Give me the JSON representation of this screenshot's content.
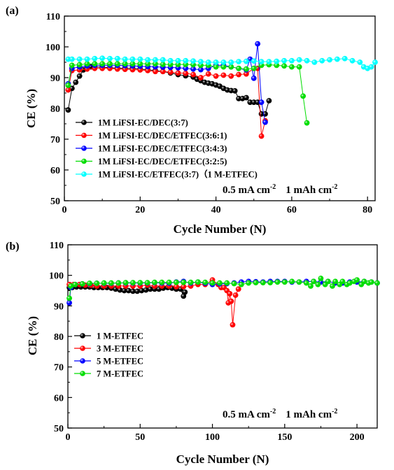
{
  "chart_data": [
    {
      "type": "scatter",
      "panel_label": "(a)",
      "xlabel": "Cycle Number (N)",
      "ylabel": "CE (%)",
      "xlim": [
        0,
        82
      ],
      "ylim": [
        50,
        110
      ],
      "xticks": [
        0,
        20,
        40,
        60,
        80
      ],
      "yticks": [
        50,
        60,
        70,
        80,
        90,
        100,
        110
      ],
      "legend_position": "bottom-left",
      "conditions": {
        "current": "0.5 mA cm",
        "current_exp": "-2",
        "capacity": "1 mAh cm",
        "capacity_exp": "-2"
      },
      "series": [
        {
          "name": "1M LiFSI-EC/DEC(3:7)",
          "color": "#000000",
          "x": [
            1,
            2,
            3,
            4,
            5,
            6,
            7,
            8,
            10,
            12,
            14,
            16,
            18,
            20,
            22,
            24,
            26,
            28,
            30,
            32,
            34,
            35,
            36,
            37,
            38,
            39,
            40,
            41,
            42,
            43,
            44,
            45,
            46,
            47,
            48,
            49,
            50,
            51,
            52,
            53,
            54
          ],
          "y": [
            79.5,
            86.5,
            88.5,
            90.5,
            92.5,
            93.2,
            93.5,
            93.5,
            93.4,
            93.2,
            93.1,
            93.0,
            93.0,
            92.8,
            92.6,
            92.3,
            92.0,
            91.5,
            91.0,
            90.6,
            90.2,
            89.5,
            89.0,
            88.5,
            88.2,
            88.0,
            87.6,
            87.2,
            86.5,
            86.0,
            85.8,
            85.7,
            83.2,
            83.2,
            83.5,
            82.0,
            82.0,
            82.0,
            78.2,
            78.2,
            82.5
          ]
        },
        {
          "name": "1M LiFSI-EC/DEC/ETFEC(3:6:1)",
          "color": "#ff0000",
          "x": [
            1,
            2,
            4,
            6,
            8,
            10,
            12,
            14,
            16,
            18,
            20,
            22,
            24,
            26,
            28,
            30,
            32,
            34,
            36,
            38,
            40,
            42,
            44,
            46,
            48,
            50,
            51,
            52,
            53
          ],
          "y": [
            86.0,
            92.3,
            92.5,
            92.8,
            93.0,
            93.0,
            93.0,
            92.8,
            92.7,
            92.6,
            92.5,
            92.3,
            92.0,
            92.0,
            91.8,
            91.5,
            91.4,
            91.0,
            90.0,
            91.2,
            90.5,
            90.8,
            90.5,
            91.0,
            91.2,
            93.0,
            93.0,
            71.0,
            76.0
          ]
        },
        {
          "name": "1M LiFSI-EC/DEC/ETFEC(3:4:3)",
          "color": "#0000ff",
          "x": [
            1,
            2,
            4,
            6,
            8,
            10,
            12,
            14,
            16,
            18,
            20,
            22,
            24,
            26,
            28,
            30,
            32,
            34,
            36,
            38,
            40,
            42,
            44,
            46,
            48,
            49,
            50,
            51,
            52,
            53
          ],
          "y": [
            88.0,
            93.0,
            93.5,
            93.8,
            94.0,
            94.0,
            94.0,
            94.0,
            93.9,
            93.8,
            93.7,
            93.6,
            93.5,
            93.4,
            93.3,
            93.2,
            93.0,
            92.8,
            92.6,
            93.0,
            94.0,
            94.0,
            93.5,
            93.0,
            92.5,
            96.0,
            89.8,
            101.0,
            82.0,
            75.5
          ]
        },
        {
          "name": "1M LiFSI-EC/DEC/ETFEC(3:2:5)",
          "color": "#00dd00",
          "x": [
            1,
            2,
            4,
            6,
            8,
            10,
            12,
            14,
            16,
            18,
            20,
            22,
            24,
            26,
            28,
            30,
            32,
            34,
            36,
            38,
            40,
            42,
            44,
            46,
            48,
            50,
            52,
            54,
            56,
            58,
            60,
            62,
            63,
            64
          ],
          "y": [
            87.5,
            94.0,
            94.2,
            94.5,
            94.5,
            94.5,
            94.5,
            94.5,
            94.5,
            94.5,
            94.5,
            94.5,
            94.5,
            94.3,
            94.3,
            94.3,
            94.3,
            94.2,
            94.0,
            94.0,
            93.5,
            93.5,
            93.5,
            93.0,
            92.8,
            93.0,
            94.0,
            94.2,
            94.0,
            93.8,
            93.5,
            93.5,
            84.0,
            75.3
          ]
        },
        {
          "name": "1M LiFSI-EC/ETFEC(3:7)（1 M-ETFEC)",
          "color": "#00ffff",
          "x": [
            1,
            2,
            4,
            6,
            8,
            10,
            12,
            14,
            16,
            18,
            20,
            22,
            24,
            26,
            28,
            30,
            32,
            34,
            36,
            38,
            40,
            42,
            44,
            46,
            48,
            50,
            52,
            54,
            56,
            58,
            60,
            62,
            64,
            66,
            68,
            70,
            72,
            74,
            76,
            78,
            79,
            80,
            81,
            82
          ],
          "y": [
            96.0,
            96.0,
            96.0,
            96.0,
            96.2,
            96.3,
            96.2,
            96.2,
            96.0,
            96.0,
            96.0,
            95.8,
            95.8,
            95.8,
            95.5,
            95.5,
            95.5,
            95.4,
            95.2,
            95.0,
            95.0,
            95.0,
            95.0,
            95.2,
            95.3,
            95.4,
            95.2,
            95.2,
            95.3,
            95.5,
            95.5,
            95.8,
            95.5,
            95.0,
            95.5,
            95.8,
            96.0,
            96.2,
            95.5,
            95.0,
            93.5,
            93.0,
            93.5,
            95.0
          ]
        }
      ]
    },
    {
      "type": "scatter",
      "panel_label": "(b)",
      "xlabel": "Cycle Number (N)",
      "ylabel": "CE (%)",
      "xlim": [
        0,
        214
      ],
      "ylim": [
        50,
        110
      ],
      "xticks": [
        0,
        50,
        100,
        150,
        200
      ],
      "yticks": [
        50,
        60,
        70,
        80,
        90,
        100,
        110
      ],
      "legend_position": "middle-left",
      "conditions": {
        "current": "0.5 mA cm",
        "current_exp": "-2",
        "capacity": "1 mAh cm",
        "capacity_exp": "-2"
      },
      "series": [
        {
          "name": "1 M-ETFEC",
          "color": "#000000",
          "x": [
            1,
            3,
            6,
            9,
            12,
            15,
            18,
            21,
            24,
            27,
            30,
            33,
            36,
            39,
            42,
            45,
            48,
            51,
            54,
            57,
            60,
            63,
            66,
            69,
            72,
            75,
            78,
            80,
            81
          ],
          "y": [
            96.0,
            96.0,
            96.2,
            96.2,
            96.2,
            96.2,
            96.0,
            96.0,
            96.0,
            96.0,
            95.8,
            95.5,
            95.2,
            95.0,
            95.0,
            94.8,
            94.8,
            95.0,
            95.2,
            95.5,
            95.5,
            95.5,
            95.8,
            96.0,
            95.8,
            95.5,
            95.5,
            93.2,
            94.5
          ]
        },
        {
          "name": "3 M-ETFEC",
          "color": "#ff0000",
          "x": [
            1,
            4,
            8,
            12,
            16,
            20,
            25,
            30,
            35,
            40,
            45,
            50,
            55,
            60,
            65,
            70,
            75,
            80,
            85,
            90,
            95,
            100,
            104,
            106,
            108,
            110,
            111,
            112,
            113,
            114,
            116,
            118
          ],
          "y": [
            97.0,
            97.0,
            97.0,
            96.8,
            96.8,
            96.5,
            96.5,
            96.5,
            96.5,
            96.5,
            96.5,
            96.5,
            96.8,
            96.5,
            96.5,
            96.5,
            96.3,
            96.3,
            96.5,
            97.0,
            97.0,
            98.5,
            97.0,
            96.0,
            96.0,
            95.0,
            91.0,
            94.0,
            91.5,
            83.8,
            93.5,
            95.5
          ]
        },
        {
          "name": "5 M-ETFEC",
          "color": "#0000ff",
          "x": [
            1,
            2,
            5,
            10,
            15,
            20,
            25,
            30,
            35,
            40,
            45,
            50,
            55,
            60,
            65,
            70,
            75,
            80,
            85,
            90,
            95,
            100,
            105,
            110,
            115,
            120,
            125,
            130,
            135,
            140,
            145,
            150,
            155,
            160,
            165,
            170,
            175,
            180,
            185,
            190,
            195,
            200,
            205,
            210,
            214
          ],
          "y": [
            91.0,
            96.0,
            97.0,
            97.2,
            97.3,
            97.4,
            97.4,
            97.4,
            97.5,
            97.5,
            97.5,
            97.5,
            97.5,
            97.6,
            97.5,
            97.4,
            97.8,
            98.0,
            97.5,
            97.8,
            97.4,
            97.0,
            97.2,
            97.3,
            97.5,
            97.8,
            98.0,
            97.9,
            97.8,
            98.0,
            98.0,
            98.0,
            97.8,
            97.8,
            98.0,
            98.0,
            97.8,
            98.0,
            97.5,
            97.5,
            97.8,
            97.8,
            98.0,
            97.8,
            97.5
          ]
        },
        {
          "name": "7 M-ETFEC",
          "color": "#00dd00",
          "x": [
            1,
            2,
            5,
            10,
            15,
            20,
            25,
            30,
            35,
            40,
            45,
            50,
            55,
            60,
            65,
            70,
            75,
            80,
            85,
            90,
            95,
            100,
            105,
            110,
            115,
            120,
            125,
            130,
            135,
            140,
            145,
            150,
            155,
            160,
            165,
            168,
            170,
            173,
            175,
            178,
            180,
            183,
            185,
            188,
            190,
            193,
            195,
            198,
            200,
            203,
            205,
            208,
            210,
            214
          ],
          "y": [
            92.5,
            96.5,
            97.0,
            97.2,
            97.4,
            97.4,
            97.5,
            97.5,
            97.5,
            97.6,
            97.6,
            97.6,
            97.6,
            97.7,
            97.7,
            97.7,
            97.7,
            97.7,
            97.7,
            97.8,
            97.7,
            97.5,
            97.5,
            97.5,
            97.3,
            97.0,
            97.5,
            97.6,
            97.6,
            97.6,
            97.8,
            97.8,
            98.0,
            97.8,
            97.5,
            96.5,
            98.0,
            97.0,
            99.0,
            97.0,
            98.0,
            96.5,
            98.0,
            97.0,
            98.0,
            97.0,
            97.5,
            98.0,
            98.5,
            97.0,
            98.0,
            97.5,
            97.8,
            97.5
          ]
        }
      ]
    }
  ]
}
